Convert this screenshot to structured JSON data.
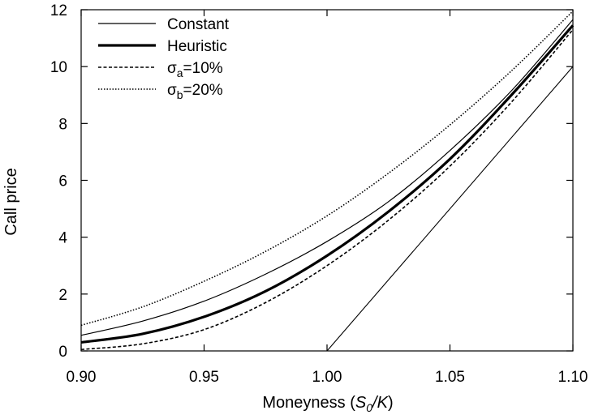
{
  "chart_data": {
    "type": "line",
    "title": "",
    "xlabel": "Moneyness (S0/K)",
    "xlabel_parts": {
      "prefix": "Moneyness (",
      "s": "S",
      "sub": "0",
      "suffix": "/K",
      "close": ")"
    },
    "ylabel": "Call price",
    "xlim": [
      0.9,
      1.1
    ],
    "ylim": [
      0,
      12
    ],
    "x_ticks": [
      "0.90",
      "0.95",
      "1.00",
      "1.05",
      "1.10"
    ],
    "y_ticks": [
      "0",
      "2",
      "4",
      "6",
      "8",
      "10",
      "12"
    ],
    "grid": false,
    "legend_position": "top-left",
    "series": [
      {
        "name": "Constant",
        "style": "thin-solid",
        "color": "#000000",
        "x": [
          0.9,
          0.925,
          0.95,
          0.975,
          1.0,
          1.025,
          1.05,
          1.075,
          1.1
        ],
        "y": [
          0.55,
          1.05,
          1.75,
          2.7,
          3.85,
          5.25,
          7.05,
          9.15,
          11.65
        ]
      },
      {
        "name": "Heuristic",
        "style": "thick-solid",
        "color": "#000000",
        "x": [
          0.9,
          0.925,
          0.95,
          0.975,
          1.0,
          1.025,
          1.05,
          1.075,
          1.1
        ],
        "y": [
          0.3,
          0.6,
          1.2,
          2.1,
          3.35,
          4.9,
          6.75,
          9.0,
          11.45
        ]
      },
      {
        "name": "σa=10%",
        "name_parts": {
          "sym": "σ",
          "sub": "a",
          "rest": "=10%"
        },
        "style": "dashed",
        "color": "#000000",
        "x": [
          0.9,
          0.925,
          0.95,
          0.975,
          1.0,
          1.025,
          1.05,
          1.075,
          1.1
        ],
        "y": [
          0.05,
          0.25,
          0.75,
          1.7,
          3.0,
          4.6,
          6.5,
          8.75,
          11.3
        ]
      },
      {
        "name": "σb=20%",
        "name_parts": {
          "sym": "σ",
          "sub": "b",
          "rest": "=20%"
        },
        "style": "dotted",
        "color": "#000000",
        "x": [
          0.9,
          0.925,
          0.95,
          0.975,
          1.0,
          1.025,
          1.05,
          1.075,
          1.1
        ],
        "y": [
          0.9,
          1.55,
          2.45,
          3.5,
          4.75,
          6.25,
          7.95,
          9.85,
          11.95
        ]
      }
    ],
    "reference_line": {
      "style": "thin-solid",
      "x": [
        1.0,
        1.1
      ],
      "y": [
        0,
        10
      ]
    }
  }
}
